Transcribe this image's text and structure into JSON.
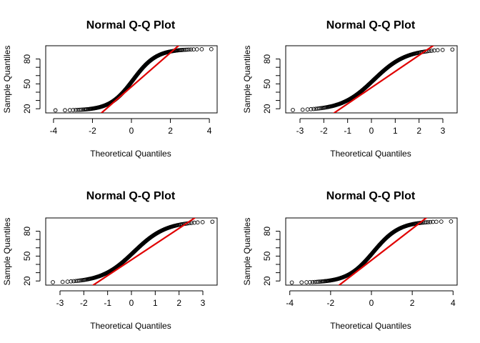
{
  "chart_data": [
    {
      "type": "scatter",
      "title": "Normal Q-Q Plot",
      "xlabel": "Theoretical Quantiles",
      "ylabel": "Sample Quantiles",
      "xlim": [
        -4.4,
        4.4
      ],
      "ylim": [
        15,
        96
      ],
      "xticks": [
        -4,
        -2,
        0,
        2,
        4
      ],
      "yticks": [
        20,
        50,
        80
      ],
      "theoretical_range": [
        -3.9,
        4.1
      ],
      "sample_quantile_profile": {
        "low": 18,
        "mid": 45,
        "high": 92,
        "tail_spread": 0.75
      },
      "reference_line": {
        "intercept": 46.5,
        "slope": 20.5
      },
      "colors": {
        "points": "#000000",
        "reference_line": "#e00000"
      }
    },
    {
      "type": "scatter",
      "title": "Normal Q-Q Plot",
      "xlabel": "Theoretical Quantiles",
      "ylabel": "Sample Quantiles",
      "xlim": [
        -3.6,
        3.6
      ],
      "ylim": [
        15,
        96
      ],
      "xticks": [
        -3,
        -2,
        -1,
        0,
        1,
        2,
        3
      ],
      "yticks": [
        20,
        50,
        80
      ],
      "theoretical_range": [
        -3.3,
        3.4
      ],
      "sample_quantile_profile": {
        "low": 18,
        "mid": 45,
        "high": 92,
        "tail_spread": 0.85
      },
      "reference_line": {
        "intercept": 45.5,
        "slope": 19.5
      },
      "colors": {
        "points": "#000000",
        "reference_line": "#e00000"
      }
    },
    {
      "type": "scatter",
      "title": "Normal Q-Q Plot",
      "xlabel": "Theoretical Quantiles",
      "ylabel": "Sample Quantiles",
      "xlim": [
        -3.6,
        3.6
      ],
      "ylim": [
        15,
        96
      ],
      "xticks": [
        -3,
        -2,
        -1,
        0,
        1,
        2,
        3
      ],
      "yticks": [
        20,
        50,
        80
      ],
      "theoretical_range": [
        -3.3,
        3.4
      ],
      "sample_quantile_profile": {
        "low": 18,
        "mid": 45,
        "high": 92,
        "tail_spread": 0.85
      },
      "reference_line": {
        "intercept": 45.5,
        "slope": 19.0
      },
      "colors": {
        "points": "#000000",
        "reference_line": "#e00000"
      }
    },
    {
      "type": "scatter",
      "title": "Normal Q-Q Plot",
      "xlabel": "Theoretical Quantiles",
      "ylabel": "Sample Quantiles",
      "xlim": [
        -4.2,
        4.2
      ],
      "ylim": [
        15,
        96
      ],
      "xticks": [
        -4,
        -2,
        0,
        2,
        4
      ],
      "yticks": [
        20,
        50,
        80
      ],
      "theoretical_range": [
        -3.9,
        3.9
      ],
      "sample_quantile_profile": {
        "low": 18,
        "mid": 45,
        "high": 92,
        "tail_spread": 0.8
      },
      "reference_line": {
        "intercept": 45.0,
        "slope": 19.0
      },
      "colors": {
        "points": "#000000",
        "reference_line": "#e00000"
      }
    }
  ]
}
